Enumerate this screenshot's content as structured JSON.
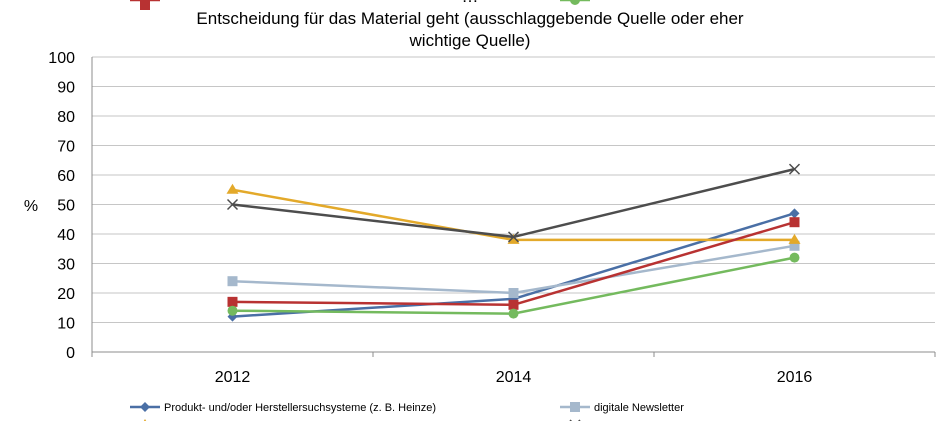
{
  "chart_data": {
    "type": "line",
    "title_lines": [
      "…",
      "Entscheidung für das Material geht (ausschlaggebende Quelle oder eher",
      "wichtige Quelle)"
    ],
    "ylabel": "%",
    "ylim": [
      0,
      100
    ],
    "yticks": [
      0,
      10,
      20,
      30,
      40,
      50,
      60,
      70,
      80,
      90,
      100
    ],
    "categories": [
      "2012",
      "2014",
      "2016"
    ],
    "grid": true,
    "legend_position": "bottom",
    "series": [
      {
        "name": "Produkt- und/oder Herstellersuchsysteme (z. B. Heinze)",
        "values": [
          12,
          18,
          47
        ],
        "color": "#4a6fa5",
        "marker": "diamond"
      },
      {
        "name": "digitale Newsletter",
        "values": [
          24,
          20,
          36
        ],
        "color": "#a5b8cc",
        "marker": "square"
      },
      {
        "name": "",
        "values": [
          55,
          38,
          38
        ],
        "color": "#e3a92a",
        "marker": "triangle"
      },
      {
        "name": "",
        "values": [
          50,
          39,
          62
        ],
        "color": "#4d4d4d",
        "marker": "x"
      },
      {
        "name": "",
        "values": [
          17,
          16,
          44
        ],
        "color": "#b83232",
        "marker": "square"
      },
      {
        "name": "",
        "values": [
          14,
          13,
          32
        ],
        "color": "#74ba5e",
        "marker": "circle"
      }
    ]
  }
}
